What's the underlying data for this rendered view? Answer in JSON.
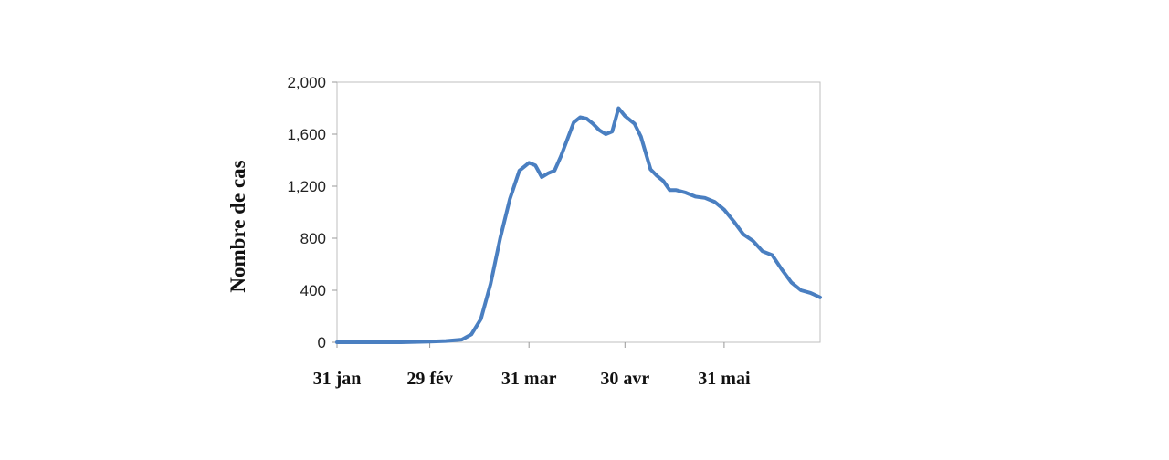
{
  "chart_data": {
    "type": "line",
    "title": "",
    "xlabel": "",
    "ylabel": "Nombre de cas",
    "x_range": [
      "2020-01-31",
      "2020-06-30"
    ],
    "ylim": [
      0,
      2000
    ],
    "y_ticks": [
      {
        "value": 0,
        "label": "0"
      },
      {
        "value": 400,
        "label": "400"
      },
      {
        "value": 800,
        "label": "800"
      },
      {
        "value": 1200,
        "label": "1,200"
      },
      {
        "value": 1600,
        "label": "1,600"
      },
      {
        "value": 2000,
        "label": "2,000"
      }
    ],
    "x_ticks": [
      {
        "value": "2020-01-31",
        "label": "31 jan"
      },
      {
        "value": "2020-02-29",
        "label": "29 fév"
      },
      {
        "value": "2020-03-31",
        "label": "31 mar"
      },
      {
        "value": "2020-04-30",
        "label": "30 avr"
      },
      {
        "value": "2020-05-31",
        "label": "31 mai"
      }
    ],
    "grid": false,
    "line_color": "#4a7fc1",
    "series": [
      {
        "x": [
          "2020-01-31",
          "2020-02-10",
          "2020-02-20",
          "2020-02-29",
          "2020-03-05",
          "2020-03-10",
          "2020-03-13",
          "2020-03-16",
          "2020-03-19",
          "2020-03-22",
          "2020-03-25",
          "2020-03-28",
          "2020-03-31",
          "2020-04-02",
          "2020-04-04",
          "2020-04-06",
          "2020-04-08",
          "2020-04-10",
          "2020-04-12",
          "2020-04-14",
          "2020-04-16",
          "2020-04-18",
          "2020-04-20",
          "2020-04-22",
          "2020-04-24",
          "2020-04-26",
          "2020-04-28",
          "2020-04-30",
          "2020-05-02",
          "2020-05-03",
          "2020-05-05",
          "2020-05-08",
          "2020-05-10",
          "2020-05-12",
          "2020-05-14",
          "2020-05-16",
          "2020-05-19",
          "2020-05-22",
          "2020-05-25",
          "2020-05-28",
          "2020-05-31",
          "2020-06-03",
          "2020-06-06",
          "2020-06-09",
          "2020-06-12",
          "2020-06-15",
          "2020-06-18",
          "2020-06-21",
          "2020-06-24",
          "2020-06-27",
          "2020-06-30"
        ],
        "y": [
          0,
          0,
          0,
          5,
          10,
          20,
          60,
          180,
          450,
          800,
          1100,
          1320,
          1380,
          1360,
          1270,
          1300,
          1320,
          1430,
          1560,
          1690,
          1730,
          1720,
          1680,
          1630,
          1600,
          1620,
          1800,
          1740,
          1700,
          1680,
          1580,
          1330,
          1280,
          1240,
          1170,
          1170,
          1150,
          1120,
          1110,
          1080,
          1020,
          930,
          830,
          780,
          700,
          670,
          560,
          460,
          400,
          380,
          345
        ]
      }
    ]
  }
}
